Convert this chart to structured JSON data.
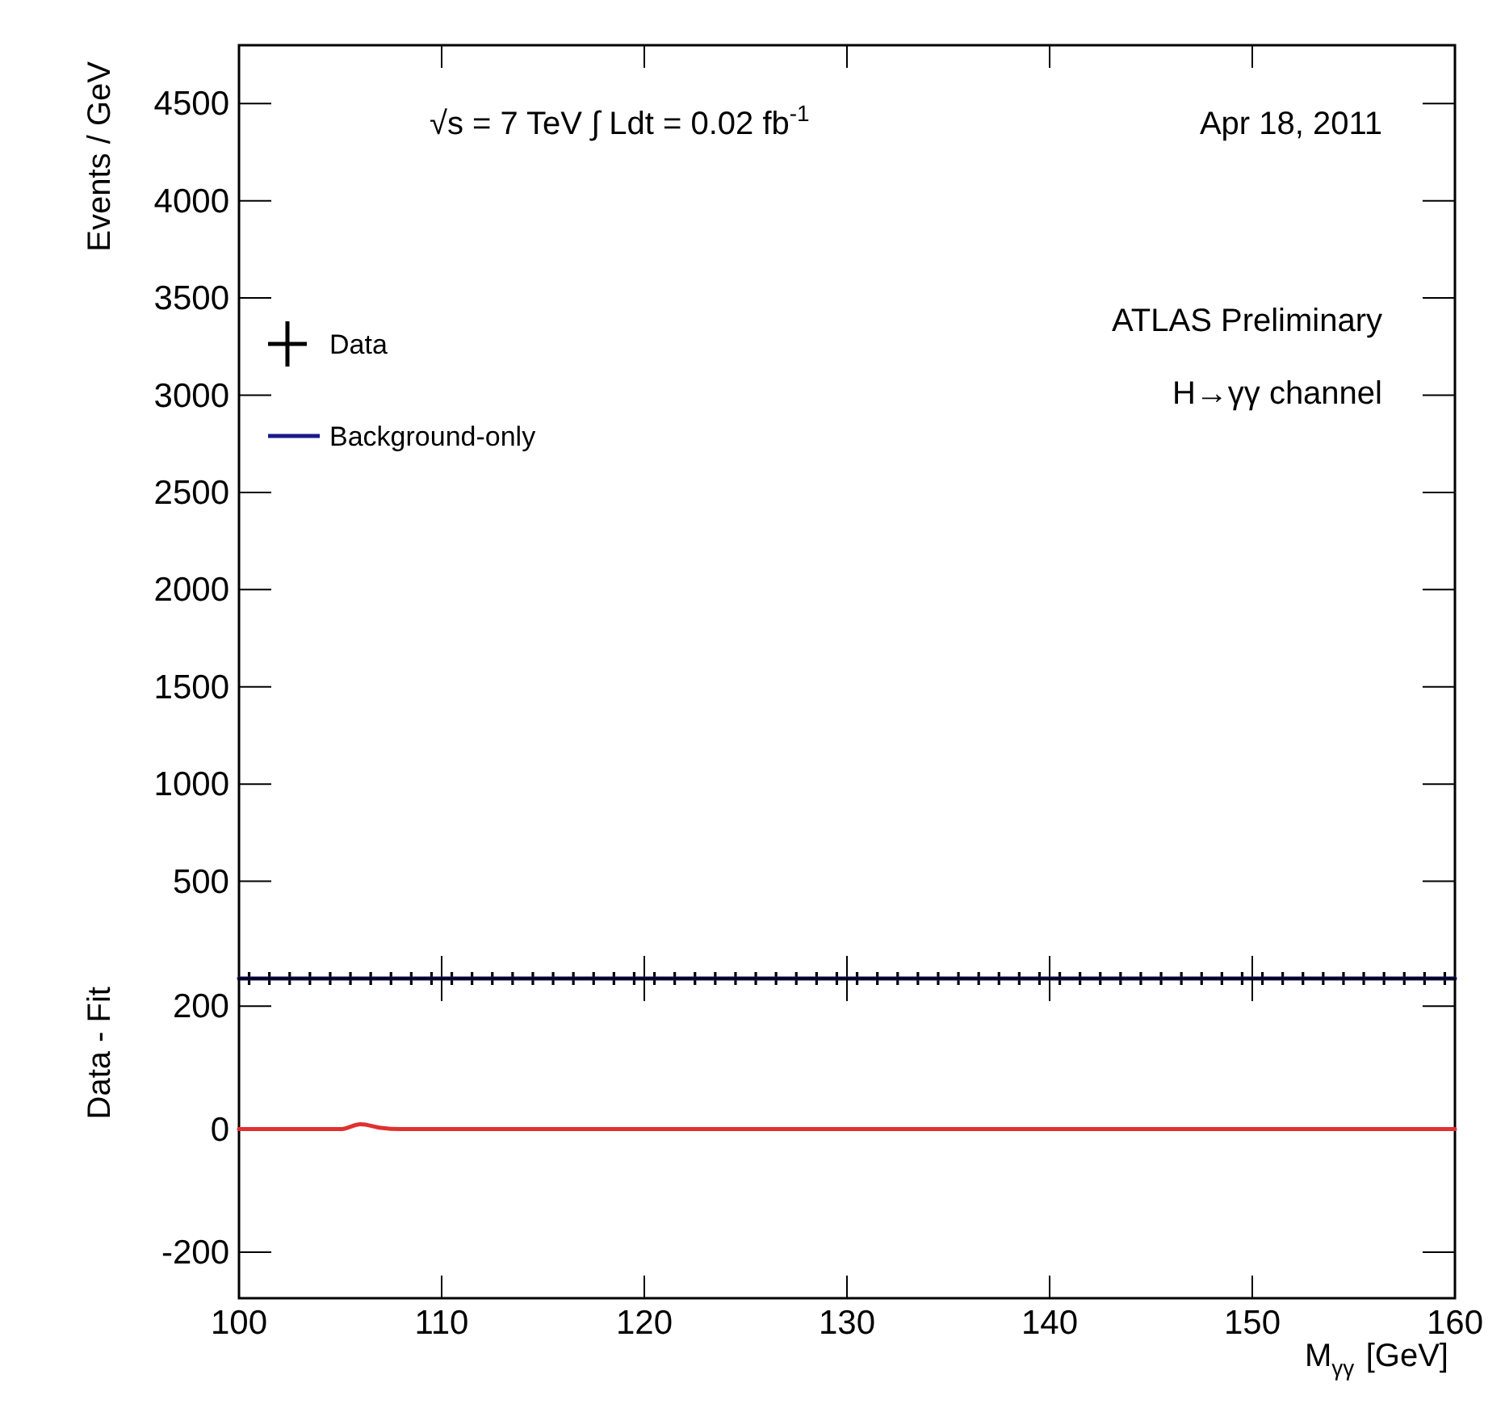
{
  "chart_data": [
    {
      "type": "scatter",
      "ylabel": "Events / GeV",
      "xlim": [
        100,
        160
      ],
      "ylim": [
        0,
        4800
      ],
      "xticks": [
        100,
        110,
        120,
        130,
        140,
        150,
        160
      ],
      "yticks": [
        500,
        1000,
        1500,
        2000,
        2500,
        3000,
        3500,
        4000,
        4500
      ],
      "tick_labels": "y",
      "legend": "top left",
      "annotations": [
        "√s = 7 TeV  ∫ Ldt = 0.02 fb$^{-1}$",
        "Apr 18, 2011",
        "ATLAS Preliminary",
        "H→γγ channel"
      ],
      "series": [
        {
          "name": "Data",
          "marker": "cross",
          "color": "#000000",
          "x": [
            100.5,
            101.5,
            102.5,
            103.5,
            104.5,
            105.5,
            106.5,
            107.5,
            108.5,
            109.5,
            110.5,
            111.5,
            112.5,
            113.5,
            114.5,
            115.5,
            116.5,
            117.5,
            118.5,
            119.5,
            120.5,
            121.5,
            122.5,
            123.5,
            124.5,
            125.5,
            126.5,
            127.5,
            128.5,
            129.5,
            130.5,
            131.5,
            132.5,
            133.5,
            134.5,
            135.5,
            136.5,
            137.5,
            138.5,
            139.5,
            140.5,
            141.5,
            142.5,
            143.5,
            144.5,
            145.5,
            146.5,
            147.5,
            148.5,
            149.5,
            150.5,
            151.5,
            152.5,
            153.5,
            154.5,
            155.5,
            156.5,
            157.5,
            158.5,
            159.5
          ],
          "values": [
            0,
            0,
            0,
            0,
            0,
            0,
            0,
            0,
            0,
            0,
            0,
            0,
            0,
            0,
            0,
            0,
            0,
            0,
            0,
            0,
            0,
            0,
            0,
            0,
            0,
            0,
            0,
            0,
            0,
            0,
            0,
            0,
            0,
            0,
            0,
            0,
            0,
            0,
            0,
            0,
            0,
            0,
            0,
            0,
            0,
            0,
            0,
            0,
            0,
            0,
            0,
            0,
            0,
            0,
            0,
            0,
            0,
            0,
            0,
            0
          ]
        },
        {
          "name": "Background-only",
          "type": "line",
          "color": "#1a1a8c",
          "x": [
            100,
            160
          ],
          "values": [
            0,
            0
          ]
        }
      ]
    },
    {
      "type": "line",
      "ylabel": "Data - Fit",
      "xlabel": "M$_{γγ}$ [GeV]",
      "xlim": [
        100,
        160
      ],
      "ylim": [
        -275,
        245
      ],
      "xticks": [
        100,
        110,
        120,
        130,
        140,
        150,
        160
      ],
      "yticks": [
        -200,
        0,
        200
      ],
      "series": [
        {
          "color": "#e03030",
          "x": [
            100,
            102,
            104,
            105,
            106,
            107,
            108,
            110,
            115,
            120,
            125,
            130,
            140,
            150,
            160
          ],
          "values": [
            0,
            0,
            0,
            0,
            8,
            2,
            0,
            0,
            0,
            0,
            0,
            0,
            0,
            0,
            0
          ]
        }
      ]
    }
  ]
}
